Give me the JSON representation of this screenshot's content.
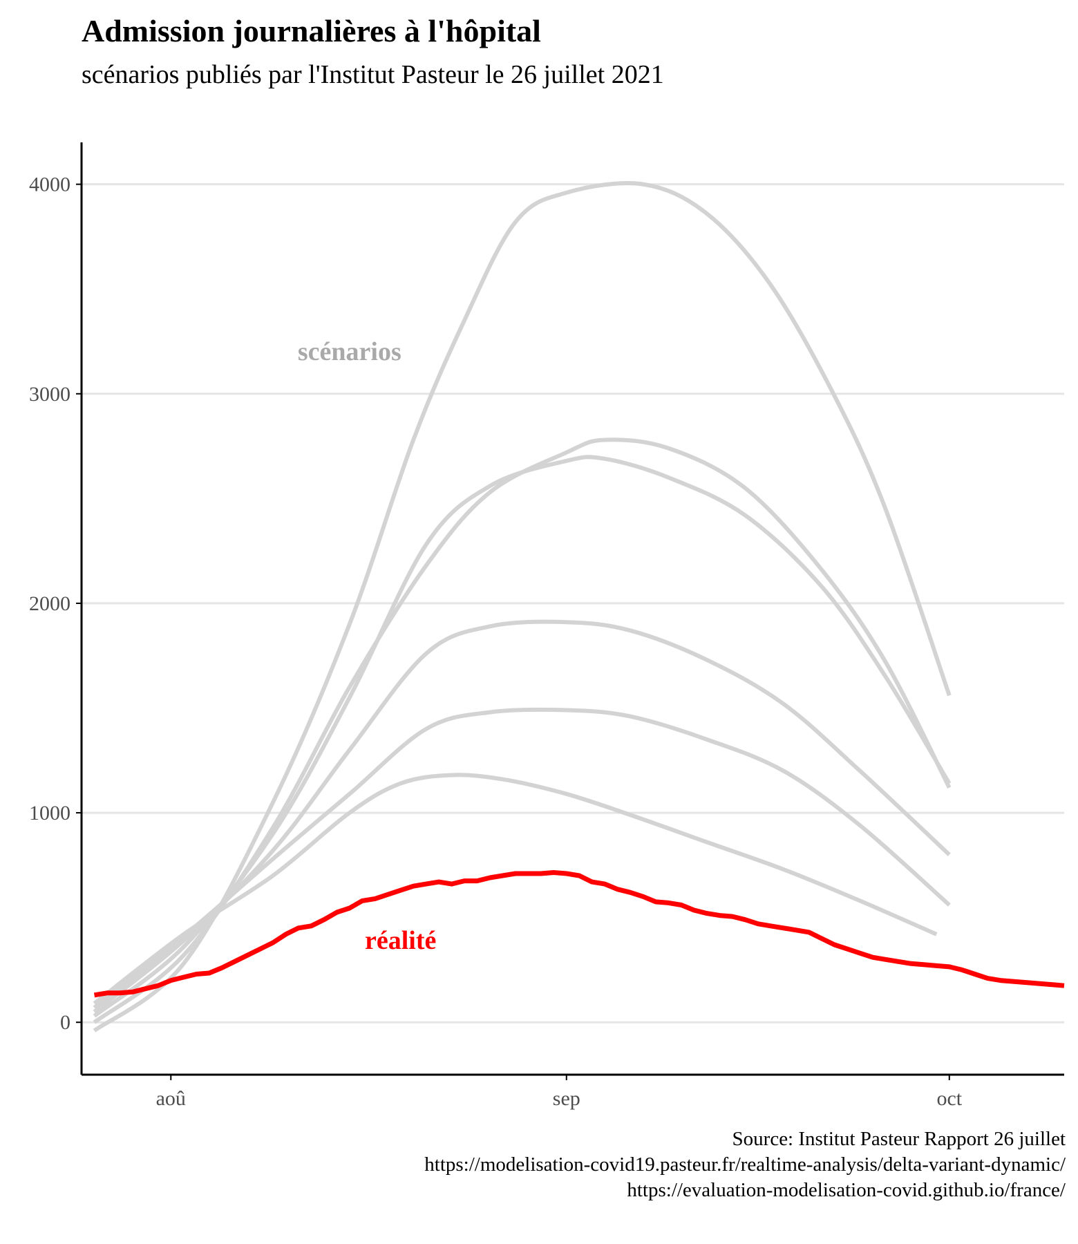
{
  "header": {
    "title": "Admission journalières à l'hôpital",
    "subtitle": "scénarios publiés par l'Institut Pasteur le 26 juillet 2021"
  },
  "caption": {
    "line1": "Source: Institut Pasteur Rapport 26 juillet",
    "line2": "https://modelisation-covid19.pasteur.fr/realtime-analysis/delta-variant-dynamic/",
    "line3": "https://evaluation-modelisation-covid.github.io/france/"
  },
  "colors": {
    "scenario": "#d3d3d3",
    "scenario_label": "#a9a9a9",
    "reality": "#ff0000",
    "grid": "#e5e5e5",
    "axis": "#000000",
    "tick_label": "#4d4d4d"
  },
  "chart_data": {
    "type": "line",
    "title": "Admission journalières à l'hôpital",
    "subtitle": "scénarios publiés par l'Institut Pasteur le 26 juillet 2021",
    "xlabel": "",
    "ylabel": "",
    "x_unit": "date (2021)",
    "xlim": [
      "2021-07-25",
      "2021-10-10"
    ],
    "ylim": [
      -250,
      4200
    ],
    "grid": "horizontal major",
    "legend": "none",
    "x_ticks": [
      {
        "date": "2021-08-01",
        "label": "aoû"
      },
      {
        "date": "2021-09-01",
        "label": "sep"
      },
      {
        "date": "2021-10-01",
        "label": "oct"
      }
    ],
    "y_ticks": [
      0,
      1000,
      2000,
      3000,
      4000
    ],
    "annotations": [
      {
        "text": "scénarios",
        "date": "2021-08-15",
        "y": 3200,
        "color": "#a9a9a9"
      },
      {
        "text": "réalité",
        "date": "2021-08-19",
        "y": 390,
        "color": "#ff0000"
      }
    ],
    "series": [
      {
        "group": "scénarios",
        "points": [
          [
            "2021-07-26",
            -40
          ],
          [
            "2021-08-02",
            280
          ],
          [
            "2021-08-09",
            1050
          ],
          [
            "2021-08-15",
            1900
          ],
          [
            "2021-08-20",
            2780
          ],
          [
            "2021-08-24",
            3350
          ],
          [
            "2021-08-28",
            3820
          ],
          [
            "2021-09-01",
            3960
          ],
          [
            "2021-09-07",
            4000
          ],
          [
            "2021-09-12",
            3860
          ],
          [
            "2021-09-17",
            3520
          ],
          [
            "2021-09-22",
            2990
          ],
          [
            "2021-09-26",
            2450
          ],
          [
            "2021-10-01",
            1560
          ]
        ]
      },
      {
        "group": "scénarios",
        "points": [
          [
            "2021-07-26",
            0
          ],
          [
            "2021-08-02",
            320
          ],
          [
            "2021-08-09",
            930
          ],
          [
            "2021-08-15",
            1600
          ],
          [
            "2021-08-21",
            2180
          ],
          [
            "2021-08-26",
            2530
          ],
          [
            "2021-09-01",
            2720
          ],
          [
            "2021-09-04",
            2780
          ],
          [
            "2021-09-09",
            2740
          ],
          [
            "2021-09-15",
            2550
          ],
          [
            "2021-09-21",
            2160
          ],
          [
            "2021-09-26",
            1720
          ],
          [
            "2021-10-01",
            1120
          ]
        ]
      },
      {
        "group": "scénarios",
        "points": [
          [
            "2021-07-26",
            30
          ],
          [
            "2021-08-02",
            360
          ],
          [
            "2021-08-09",
            900
          ],
          [
            "2021-08-15",
            1550
          ],
          [
            "2021-08-21",
            2280
          ],
          [
            "2021-08-26",
            2560
          ],
          [
            "2021-09-01",
            2680
          ],
          [
            "2021-09-04",
            2690
          ],
          [
            "2021-09-09",
            2600
          ],
          [
            "2021-09-15",
            2420
          ],
          [
            "2021-09-21",
            2080
          ],
          [
            "2021-09-26",
            1650
          ],
          [
            "2021-10-01",
            1140
          ]
        ]
      },
      {
        "group": "scénarios",
        "points": [
          [
            "2021-07-26",
            50
          ],
          [
            "2021-08-02",
            390
          ],
          [
            "2021-08-09",
            820
          ],
          [
            "2021-08-15",
            1300
          ],
          [
            "2021-08-21",
            1760
          ],
          [
            "2021-08-26",
            1890
          ],
          [
            "2021-09-01",
            1910
          ],
          [
            "2021-09-06",
            1870
          ],
          [
            "2021-09-12",
            1730
          ],
          [
            "2021-09-18",
            1520
          ],
          [
            "2021-09-24",
            1200
          ],
          [
            "2021-10-01",
            800
          ]
        ]
      },
      {
        "group": "scénarios",
        "points": [
          [
            "2021-07-26",
            70
          ],
          [
            "2021-08-02",
            410
          ],
          [
            "2021-08-09",
            780
          ],
          [
            "2021-08-15",
            1090
          ],
          [
            "2021-08-21",
            1400
          ],
          [
            "2021-08-26",
            1480
          ],
          [
            "2021-09-01",
            1490
          ],
          [
            "2021-09-06",
            1460
          ],
          [
            "2021-09-12",
            1350
          ],
          [
            "2021-09-18",
            1200
          ],
          [
            "2021-09-24",
            940
          ],
          [
            "2021-10-01",
            560
          ]
        ]
      },
      {
        "group": "scénarios",
        "points": [
          [
            "2021-07-26",
            90
          ],
          [
            "2021-08-02",
            420
          ],
          [
            "2021-08-09",
            700
          ],
          [
            "2021-08-15",
            1000
          ],
          [
            "2021-08-19",
            1140
          ],
          [
            "2021-08-23",
            1180
          ],
          [
            "2021-08-27",
            1160
          ],
          [
            "2021-09-01",
            1090
          ],
          [
            "2021-09-06",
            990
          ],
          [
            "2021-09-12",
            860
          ],
          [
            "2021-09-18",
            730
          ],
          [
            "2021-09-24",
            580
          ],
          [
            "2021-09-30",
            420
          ]
        ]
      },
      {
        "group": "réalité",
        "points": [
          [
            "2021-07-26",
            130
          ],
          [
            "2021-07-27",
            140
          ],
          [
            "2021-07-28",
            140
          ],
          [
            "2021-07-29",
            145
          ],
          [
            "2021-07-30",
            160
          ],
          [
            "2021-07-31",
            175
          ],
          [
            "2021-08-01",
            200
          ],
          [
            "2021-08-02",
            215
          ],
          [
            "2021-08-03",
            230
          ],
          [
            "2021-08-04",
            235
          ],
          [
            "2021-08-05",
            260
          ],
          [
            "2021-08-06",
            290
          ],
          [
            "2021-08-07",
            320
          ],
          [
            "2021-08-08",
            350
          ],
          [
            "2021-08-09",
            380
          ],
          [
            "2021-08-10",
            420
          ],
          [
            "2021-08-11",
            450
          ],
          [
            "2021-08-12",
            460
          ],
          [
            "2021-08-13",
            490
          ],
          [
            "2021-08-14",
            525
          ],
          [
            "2021-08-15",
            545
          ],
          [
            "2021-08-16",
            580
          ],
          [
            "2021-08-17",
            590
          ],
          [
            "2021-08-18",
            610
          ],
          [
            "2021-08-19",
            630
          ],
          [
            "2021-08-20",
            650
          ],
          [
            "2021-08-21",
            660
          ],
          [
            "2021-08-22",
            670
          ],
          [
            "2021-08-23",
            660
          ],
          [
            "2021-08-24",
            675
          ],
          [
            "2021-08-25",
            675
          ],
          [
            "2021-08-26",
            690
          ],
          [
            "2021-08-27",
            700
          ],
          [
            "2021-08-28",
            710
          ],
          [
            "2021-08-29",
            710
          ],
          [
            "2021-08-30",
            710
          ],
          [
            "2021-08-31",
            715
          ],
          [
            "2021-09-01",
            710
          ],
          [
            "2021-09-02",
            700
          ],
          [
            "2021-09-03",
            670
          ],
          [
            "2021-09-04",
            660
          ],
          [
            "2021-09-05",
            635
          ],
          [
            "2021-09-06",
            620
          ],
          [
            "2021-09-07",
            600
          ],
          [
            "2021-09-08",
            575
          ],
          [
            "2021-09-09",
            570
          ],
          [
            "2021-09-10",
            560
          ],
          [
            "2021-09-11",
            535
          ],
          [
            "2021-09-12",
            520
          ],
          [
            "2021-09-13",
            510
          ],
          [
            "2021-09-14",
            505
          ],
          [
            "2021-09-15",
            490
          ],
          [
            "2021-09-16",
            470
          ],
          [
            "2021-09-17",
            460
          ],
          [
            "2021-09-18",
            450
          ],
          [
            "2021-09-19",
            440
          ],
          [
            "2021-09-20",
            430
          ],
          [
            "2021-09-21",
            400
          ],
          [
            "2021-09-22",
            370
          ],
          [
            "2021-09-23",
            350
          ],
          [
            "2021-09-24",
            330
          ],
          [
            "2021-09-25",
            310
          ],
          [
            "2021-09-26",
            300
          ],
          [
            "2021-09-27",
            290
          ],
          [
            "2021-09-28",
            280
          ],
          [
            "2021-09-29",
            275
          ],
          [
            "2021-09-30",
            270
          ],
          [
            "2021-10-01",
            265
          ],
          [
            "2021-10-02",
            250
          ],
          [
            "2021-10-03",
            230
          ],
          [
            "2021-10-04",
            210
          ],
          [
            "2021-10-05",
            200
          ],
          [
            "2021-10-06",
            195
          ],
          [
            "2021-10-07",
            190
          ],
          [
            "2021-10-08",
            185
          ],
          [
            "2021-10-09",
            180
          ],
          [
            "2021-10-10",
            175
          ]
        ]
      }
    ]
  }
}
